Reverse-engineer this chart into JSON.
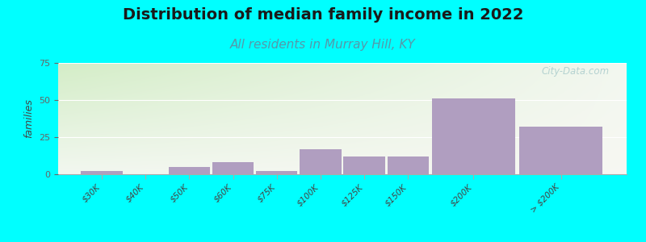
{
  "title": "Distribution of median family income in 2022",
  "subtitle": "All residents in Murray Hill, KY",
  "categories": [
    "$30K",
    "$40K",
    "$50K",
    "$60K",
    "$75K",
    "$100K",
    "$125K",
    "$150K",
    "$200K",
    "> $200K"
  ],
  "values": [
    2,
    0,
    5,
    8,
    2,
    17,
    12,
    12,
    51,
    32
  ],
  "widths": [
    1,
    1,
    1,
    1,
    1,
    1,
    1,
    1,
    2,
    2
  ],
  "bar_color": "#b09ec0",
  "background_outer": "#00FFFF",
  "grad_color_top_left": "#d4ecc8",
  "grad_color_right": "#f0f0e8",
  "ylabel": "families",
  "ylim": [
    0,
    75
  ],
  "yticks": [
    0,
    25,
    50,
    75
  ],
  "watermark": "City-Data.com",
  "title_fontsize": 14,
  "subtitle_fontsize": 11,
  "title_color": "#1a1a1a",
  "subtitle_color": "#5599aa"
}
